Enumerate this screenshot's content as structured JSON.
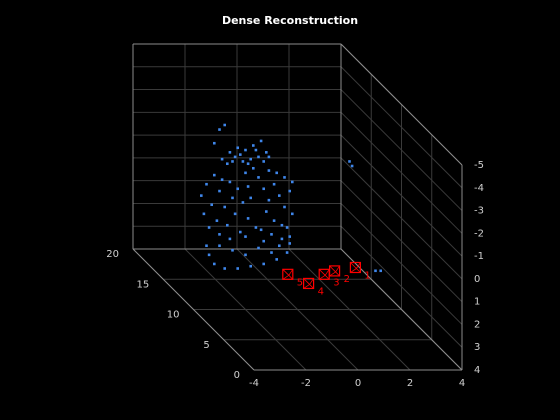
{
  "chart_data": {
    "type": "scatter3d",
    "title": "Dense Reconstruction",
    "xlim": [
      -4,
      4
    ],
    "xticks": [
      -4,
      -2,
      0,
      2,
      4
    ],
    "ylim": [
      0,
      20
    ],
    "yticks": [
      0,
      5,
      10,
      15,
      20
    ],
    "zlim": [
      -5,
      4
    ],
    "zticks": [
      -5,
      -4,
      -3,
      -2,
      -1,
      0,
      1,
      2,
      3,
      4
    ],
    "zdir": "reverse",
    "grid": true,
    "color": "#3f86ea",
    "points": [
      [
        -2.9,
        10,
        -2.6
      ],
      [
        -2.6,
        10,
        -2.9
      ],
      [
        -2.3,
        10,
        -3.1
      ],
      [
        -2.0,
        10,
        -3.0
      ],
      [
        -1.7,
        10,
        -3.2
      ],
      [
        -1.4,
        10,
        -3.4
      ],
      [
        -1.2,
        10,
        -2.9
      ],
      [
        -1.5,
        10,
        -2.7
      ],
      [
        -1.8,
        10,
        -2.6
      ],
      [
        -2.1,
        10,
        -2.5
      ],
      [
        -2.4,
        10,
        -2.7
      ],
      [
        -2.7,
        10,
        -2.4
      ],
      [
        -1.3,
        10,
        -2.5
      ],
      [
        -1.6,
        10,
        -3.0
      ],
      [
        -2.2,
        10,
        -2.8
      ],
      [
        -1.9,
        10,
        -2.4
      ],
      [
        -2.5,
        10,
        -2.5
      ],
      [
        -1.1,
        10,
        -2.7
      ],
      [
        -2.8,
        10,
        -4.1
      ],
      [
        -3.2,
        10,
        -3.3
      ],
      [
        -3.0,
        10,
        -3.9
      ],
      [
        2.0,
        10,
        -2.5
      ],
      [
        2.1,
        10,
        -2.3
      ],
      [
        -3.7,
        10,
        -1.0
      ],
      [
        -3.5,
        10,
        -1.5
      ],
      [
        -3.3,
        10,
        -0.6
      ],
      [
        -3.6,
        10,
        -0.2
      ],
      [
        -3.2,
        10,
        -1.9
      ],
      [
        -3.0,
        10,
        -1.2
      ],
      [
        -2.8,
        10,
        -0.5
      ],
      [
        -3.1,
        10,
        0.1
      ],
      [
        -2.6,
        10,
        -1.6
      ],
      [
        -2.5,
        10,
        -0.9
      ],
      [
        -2.7,
        10,
        0.3
      ],
      [
        -2.4,
        10,
        -0.2
      ],
      [
        -2.9,
        10,
        -1.7
      ],
      [
        -3.4,
        10,
        0.4
      ],
      [
        -2.3,
        10,
        -1.3
      ],
      [
        -2.2,
        10,
        0.6
      ],
      [
        -2.6,
        10,
        0.9
      ],
      [
        -3.0,
        10,
        0.7
      ],
      [
        -2.0,
        10,
        -2.0
      ],
      [
        -1.9,
        10,
        -1.4
      ],
      [
        -2.1,
        10,
        -0.7
      ],
      [
        -1.9,
        10,
        0.0
      ],
      [
        -2.0,
        10,
        0.8
      ],
      [
        -1.7,
        10,
        -2.2
      ],
      [
        -1.8,
        10,
        -0.9
      ],
      [
        -1.6,
        10,
        0.4
      ],
      [
        -1.5,
        10,
        -1.8
      ],
      [
        -1.3,
        10,
        -1.3
      ],
      [
        -1.1,
        10,
        -0.8
      ],
      [
        -0.9,
        10,
        -1.5
      ],
      [
        -0.7,
        10,
        -1.0
      ],
      [
        -0.5,
        10,
        -0.5
      ],
      [
        -0.3,
        10,
        -1.2
      ],
      [
        -0.2,
        10,
        -0.2
      ],
      [
        -0.4,
        10,
        0.4
      ],
      [
        -0.6,
        10,
        0.9
      ],
      [
        -0.9,
        10,
        0.1
      ],
      [
        -1.2,
        10,
        -0.3
      ],
      [
        -1.4,
        10,
        0.5
      ],
      [
        -1.0,
        10,
        0.7
      ],
      [
        -0.8,
        10,
        -2.0
      ],
      [
        -0.5,
        10,
        -1.8
      ],
      [
        -0.2,
        10,
        -1.6
      ],
      [
        -1.1,
        10,
        -2.1
      ],
      [
        -0.6,
        10,
        0.3
      ],
      [
        -1.3,
        10,
        1.0
      ],
      [
        -0.3,
        10,
        0.8
      ],
      [
        -3.4,
        10,
        1.6
      ],
      [
        -3.2,
        10,
        2.0
      ],
      [
        -2.8,
        10,
        2.2
      ],
      [
        -2.3,
        10,
        2.2
      ],
      [
        -1.8,
        10,
        2.1
      ],
      [
        -1.3,
        10,
        2.0
      ],
      [
        -0.8,
        10,
        1.8
      ],
      [
        -0.4,
        10,
        1.5
      ],
      [
        -0.3,
        10,
        1.1
      ],
      [
        -0.7,
        10,
        1.2
      ],
      [
        -1.5,
        10,
        1.3
      ],
      [
        -2.5,
        10,
        1.4
      ],
      [
        -3.0,
        10,
        1.2
      ],
      [
        -3.5,
        10,
        1.2
      ],
      [
        -2.0,
        10,
        1.6
      ],
      [
        -1.0,
        10,
        1.5
      ],
      [
        3.0,
        10,
        2.3
      ],
      [
        3.2,
        10,
        2.3
      ]
    ],
    "camera_color": "#ff0000",
    "cameras": [
      {
        "label": "1",
        "position": [
          -0.1,
          0,
          -0.5
        ]
      },
      {
        "label": "2",
        "position": [
          -0.9,
          0,
          -0.35
        ]
      },
      {
        "label": "3",
        "position": [
          -1.3,
          0,
          -0.2
        ]
      },
      {
        "label": "4",
        "position": [
          -1.9,
          0,
          0.2
        ]
      },
      {
        "label": "5",
        "position": [
          -2.7,
          0,
          -0.2
        ]
      }
    ]
  }
}
